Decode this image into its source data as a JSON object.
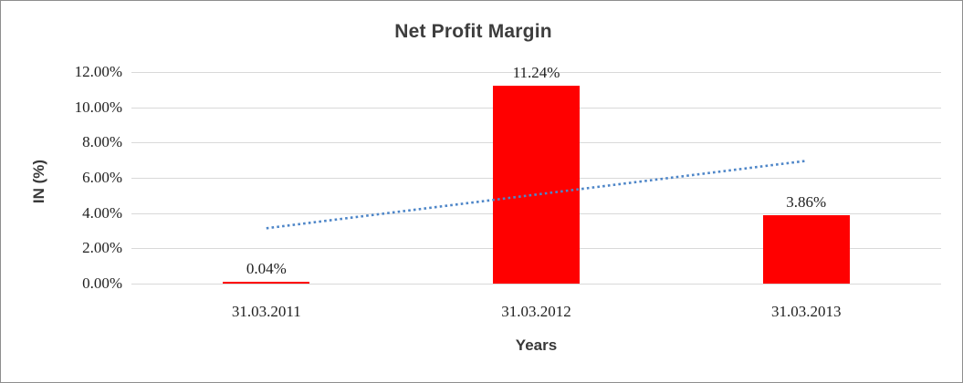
{
  "chart_data": {
    "type": "bar",
    "title": "Net Profit Margin",
    "xlabel": "Years",
    "ylabel": "IN (%)",
    "categories": [
      "31.03.2011",
      "31.03.2012",
      "31.03.2013"
    ],
    "values": [
      0.04,
      11.24,
      3.86
    ],
    "data_labels": [
      "0.04%",
      "11.24%",
      "3.86%"
    ],
    "data_label_position": "outside_end",
    "ylim": [
      0,
      12
    ],
    "ytick_step": 2,
    "ytick_labels": [
      "0.00%",
      "2.00%",
      "4.00%",
      "6.00%",
      "8.00%",
      "10.00%",
      "12.00%"
    ],
    "grid": true,
    "legend": "none",
    "bar_color": "#FF0000",
    "grid_color": "#D9D9D9",
    "title_color": "#3D3D3D",
    "trendline": {
      "type": "linear",
      "style": "dotted",
      "color": "#4E86C8",
      "start_value": 3.14,
      "end_value": 6.96
    }
  }
}
